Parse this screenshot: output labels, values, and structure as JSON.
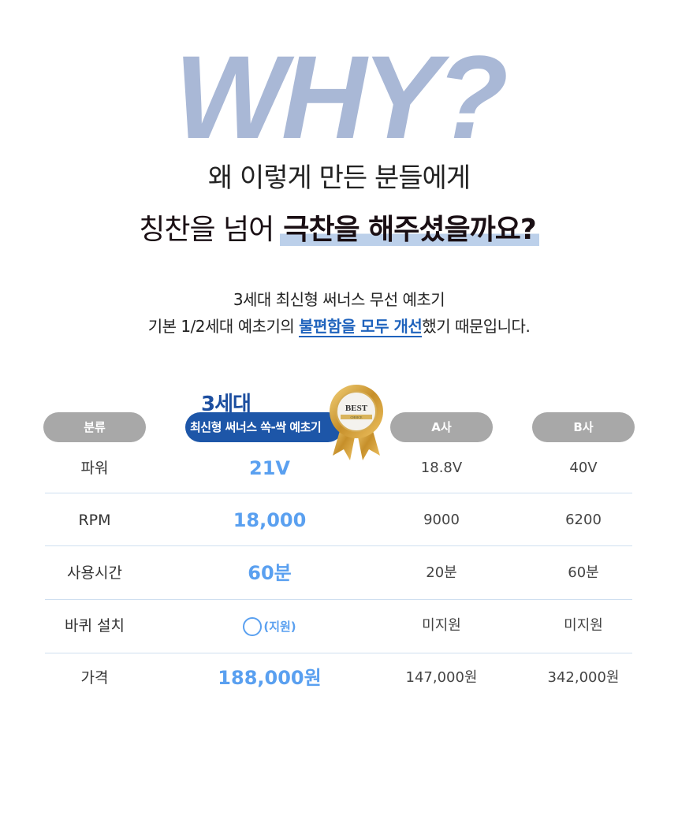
{
  "hero": {
    "title": "WHY?",
    "line1": "왜 이렇게 만든 분들에게",
    "line2_plain": "칭찬을 넘어",
    "line2_highlight": "극찬을 해주셨을까요?"
  },
  "sub": {
    "line1": "3세대 최신형 써너스 무선 예초기",
    "line2_pre": "기본 1/2세대 예초기의 ",
    "line2_highlight": "불편함을 모두 개선",
    "line2_post": "했기 때문입니다."
  },
  "table": {
    "headers": {
      "category": "분류",
      "ours_gen": "3세대",
      "ours": "최신형 써너스 쏙-싹 예초기",
      "a": "A사",
      "b": "B사"
    },
    "badge": {
      "text": "BEST",
      "sub": "CHOICE",
      "icon": "award-ribbon-icon"
    },
    "rows": [
      {
        "label": "파워",
        "ours": "21V",
        "a": "18.8V",
        "b": "40V"
      },
      {
        "label": "RPM",
        "ours": "18,000",
        "a": "9000",
        "b": "6200"
      },
      {
        "label": "사용시간",
        "ours": "60분",
        "a": "20분",
        "b": "60분"
      },
      {
        "label": "바퀴 설치",
        "ours": "(지원)",
        "a": "미지원",
        "b": "미지원"
      },
      {
        "label": "가격",
        "ours": "188,000원",
        "a": "147,000원",
        "b": "342,000원"
      }
    ]
  },
  "colors": {
    "why": "#a9b8d6",
    "accent_blue": "#1d56a8",
    "value_blue": "#5aa0f0",
    "pill_gray": "#a8a8a8",
    "highlight": "#bcd0ea"
  }
}
